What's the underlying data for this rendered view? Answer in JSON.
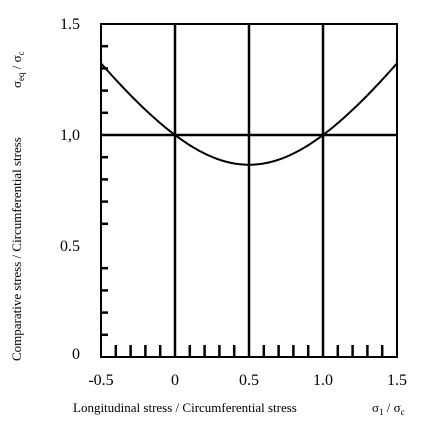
{
  "chart_data": {
    "type": "line",
    "title": "",
    "xlabel": "Longitudinal stress / Circumferential stress",
    "xlabel_symbol": {
      "main": "σ",
      "sub": "1",
      "tail": " / σ",
      "tail_sub": "c"
    },
    "ylabel": "Comparative stress / Circumferential stress",
    "ylabel_symbol": {
      "main": "σ",
      "sub": "eq",
      "tail": " / σ",
      "tail_sub": "c"
    },
    "xlim": [
      -0.5,
      1.5
    ],
    "ylim": [
      0,
      1.5
    ],
    "x_ticks": [
      {
        "value": -0.5,
        "label": "-0.5"
      },
      {
        "value": 0,
        "label": "0"
      },
      {
        "value": 0.5,
        "label": "0.5"
      },
      {
        "value": 1.0,
        "label": "1.0"
      },
      {
        "value": 1.5,
        "label": "1.5"
      }
    ],
    "y_ticks": [
      {
        "value": 0,
        "label": "0"
      },
      {
        "value": 0.5,
        "label": "0.5"
      },
      {
        "value": 1.0,
        "label": "1,0"
      },
      {
        "value": 1.5,
        "label": "1.5"
      }
    ],
    "x_minor_step": 0.1,
    "y_minor_step": 0.1,
    "grid": {
      "vertical": [
        0,
        0.5,
        1.0
      ],
      "horizontal": [
        1.0
      ]
    },
    "series": [
      {
        "formula": "sqrt(x^2 - x + 1)",
        "x": [
          -0.5,
          -0.4,
          -0.3,
          -0.2,
          -0.1,
          0,
          0.1,
          0.2,
          0.3,
          0.4,
          0.5,
          0.6,
          0.7,
          0.8,
          0.9,
          1.0,
          1.1,
          1.2,
          1.3,
          1.4,
          1.5
        ],
        "y": [
          1.323,
          1.249,
          1.179,
          1.114,
          1.054,
          1.0,
          0.954,
          0.917,
          0.889,
          0.872,
          0.866,
          0.872,
          0.889,
          0.917,
          0.954,
          1.0,
          1.054,
          1.114,
          1.179,
          1.249,
          1.323
        ]
      }
    ],
    "colors": {
      "line": "#000000",
      "background": "#ffffff"
    }
  }
}
